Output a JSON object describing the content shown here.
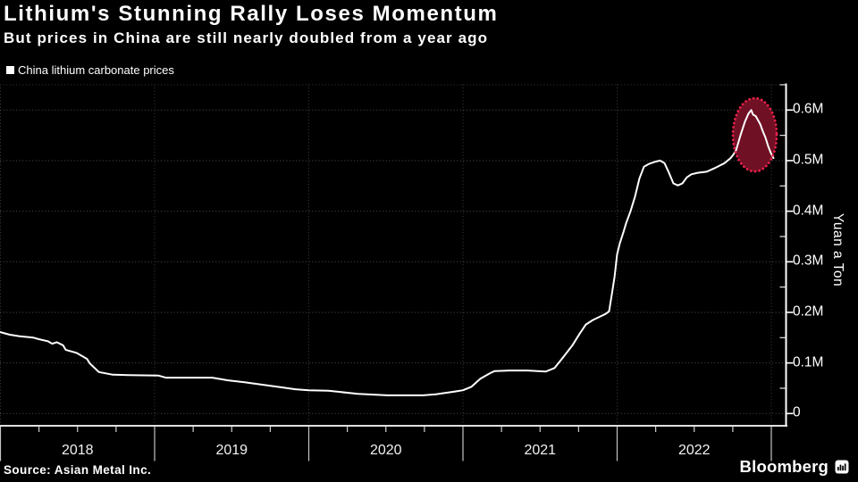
{
  "colors": {
    "background": "#000000",
    "text": "#ffffff",
    "line": "#ffffff",
    "grid_h": "#4f4f4f",
    "grid_h_top": "#3a3a3a",
    "grid_v": "#3f3f3f",
    "axis": "#ffffff",
    "baseline": "#e0e0e0",
    "tick": "#cfcfcf",
    "separator": "#c4c4c4",
    "highlight_fill": "#701024",
    "highlight_stroke": "#e6204a",
    "legend_marker": "#ffffff"
  },
  "footer": {
    "source": "Source: Asian Metal Inc.",
    "brand": "Bloomberg",
    "brand_icon": "bar-chart-terminal-icon"
  },
  "chart_data": {
    "type": "line",
    "title": "Lithium's Stunning Rally Loses Momentum",
    "subtitle": "But prices in China are still nearly doubled from a year ago",
    "ylabel": "Yuan a Ton",
    "legend_position": "top-left",
    "grid": true,
    "x_axis": {
      "start_year": 2018,
      "end_year": 2023,
      "year_labels": [
        "2018",
        "2019",
        "2020",
        "2021",
        "2022"
      ],
      "minor_ticks_per_year": 4
    },
    "y_axis": {
      "min": 0,
      "max": 0.65,
      "major_step": 0.1,
      "minor_step": 0.05,
      "unit": "million yuan per ton",
      "ticks": [
        {
          "v": 0,
          "label": "0"
        },
        {
          "v": 0.1,
          "label": "0.1M"
        },
        {
          "v": 0.2,
          "label": "0.2M"
        },
        {
          "v": 0.3,
          "label": "0.3M"
        },
        {
          "v": 0.4,
          "label": "0.4M"
        },
        {
          "v": 0.5,
          "label": "0.5M"
        },
        {
          "v": 0.6,
          "label": "0.6M"
        }
      ]
    },
    "series": [
      {
        "name": "China lithium carbonate prices",
        "color": "#ffffff",
        "points": [
          [
            2018.0,
            0.161
          ],
          [
            2018.058,
            0.156
          ],
          [
            2018.12,
            0.153
          ],
          [
            2018.214,
            0.15
          ],
          [
            2018.249,
            0.147
          ],
          [
            2018.307,
            0.143
          ],
          [
            2018.336,
            0.138
          ],
          [
            2018.365,
            0.141
          ],
          [
            2018.406,
            0.135
          ],
          [
            2018.423,
            0.126
          ],
          [
            2018.493,
            0.12
          ],
          [
            2018.522,
            0.115
          ],
          [
            2018.562,
            0.108
          ],
          [
            2018.58,
            0.099
          ],
          [
            2018.597,
            0.094
          ],
          [
            2018.638,
            0.082
          ],
          [
            2018.725,
            0.077
          ],
          [
            2018.829,
            0.076
          ],
          [
            2019.026,
            0.075
          ],
          [
            2019.072,
            0.071
          ],
          [
            2019.374,
            0.071
          ],
          [
            2019.467,
            0.066
          ],
          [
            2019.583,
            0.062
          ],
          [
            2019.699,
            0.057
          ],
          [
            2019.815,
            0.052
          ],
          [
            2019.913,
            0.048
          ],
          [
            2020.0,
            0.046
          ],
          [
            2020.128,
            0.045
          ],
          [
            2020.319,
            0.039
          ],
          [
            2020.435,
            0.037
          ],
          [
            2020.51,
            0.036
          ],
          [
            2020.742,
            0.036
          ],
          [
            2020.823,
            0.038
          ],
          [
            2020.939,
            0.043
          ],
          [
            2021.0,
            0.046
          ],
          [
            2021.055,
            0.053
          ],
          [
            2021.113,
            0.069
          ],
          [
            2021.177,
            0.08
          ],
          [
            2021.206,
            0.084
          ],
          [
            2021.304,
            0.085
          ],
          [
            2021.42,
            0.085
          ],
          [
            2021.536,
            0.083
          ],
          [
            2021.594,
            0.09
          ],
          [
            2021.652,
            0.112
          ],
          [
            2021.71,
            0.135
          ],
          [
            2021.757,
            0.158
          ],
          [
            2021.797,
            0.176
          ],
          [
            2021.843,
            0.185
          ],
          [
            2021.884,
            0.191
          ],
          [
            2021.925,
            0.197
          ],
          [
            2021.948,
            0.202
          ],
          [
            2021.965,
            0.235
          ],
          [
            2021.983,
            0.27
          ],
          [
            2022.0,
            0.315
          ],
          [
            2022.017,
            0.336
          ],
          [
            2022.041,
            0.359
          ],
          [
            2022.058,
            0.376
          ],
          [
            2022.087,
            0.4
          ],
          [
            2022.116,
            0.429
          ],
          [
            2022.145,
            0.465
          ],
          [
            2022.174,
            0.488
          ],
          [
            2022.209,
            0.494
          ],
          [
            2022.249,
            0.498
          ],
          [
            2022.278,
            0.5
          ],
          [
            2022.307,
            0.495
          ],
          [
            2022.336,
            0.476
          ],
          [
            2022.365,
            0.455
          ],
          [
            2022.394,
            0.451
          ],
          [
            2022.423,
            0.455
          ],
          [
            2022.452,
            0.467
          ],
          [
            2022.481,
            0.473
          ],
          [
            2022.522,
            0.476
          ],
          [
            2022.58,
            0.478
          ],
          [
            2022.638,
            0.486
          ],
          [
            2022.696,
            0.495
          ],
          [
            2022.736,
            0.505
          ],
          [
            2022.754,
            0.512
          ],
          [
            2022.771,
            0.52
          ],
          [
            2022.8,
            0.55
          ],
          [
            2022.829,
            0.577
          ],
          [
            2022.852,
            0.593
          ],
          [
            2022.87,
            0.6
          ],
          [
            2022.881,
            0.591
          ],
          [
            2022.899,
            0.588
          ],
          [
            2022.91,
            0.582
          ],
          [
            2022.928,
            0.572
          ],
          [
            2022.945,
            0.558
          ],
          [
            2022.962,
            0.546
          ],
          [
            2022.98,
            0.528
          ],
          [
            2022.997,
            0.515
          ],
          [
            2023.014,
            0.505
          ]
        ]
      }
    ],
    "annotation_ellipse": {
      "center_year": 2022.893,
      "center_value": 0.551,
      "rx_years": 0.142,
      "ry_value": 0.0724,
      "style": "dotted red ellipse over dark red fill",
      "note": "highlights the late-2022 peak near 0.6M and the pullback"
    }
  }
}
